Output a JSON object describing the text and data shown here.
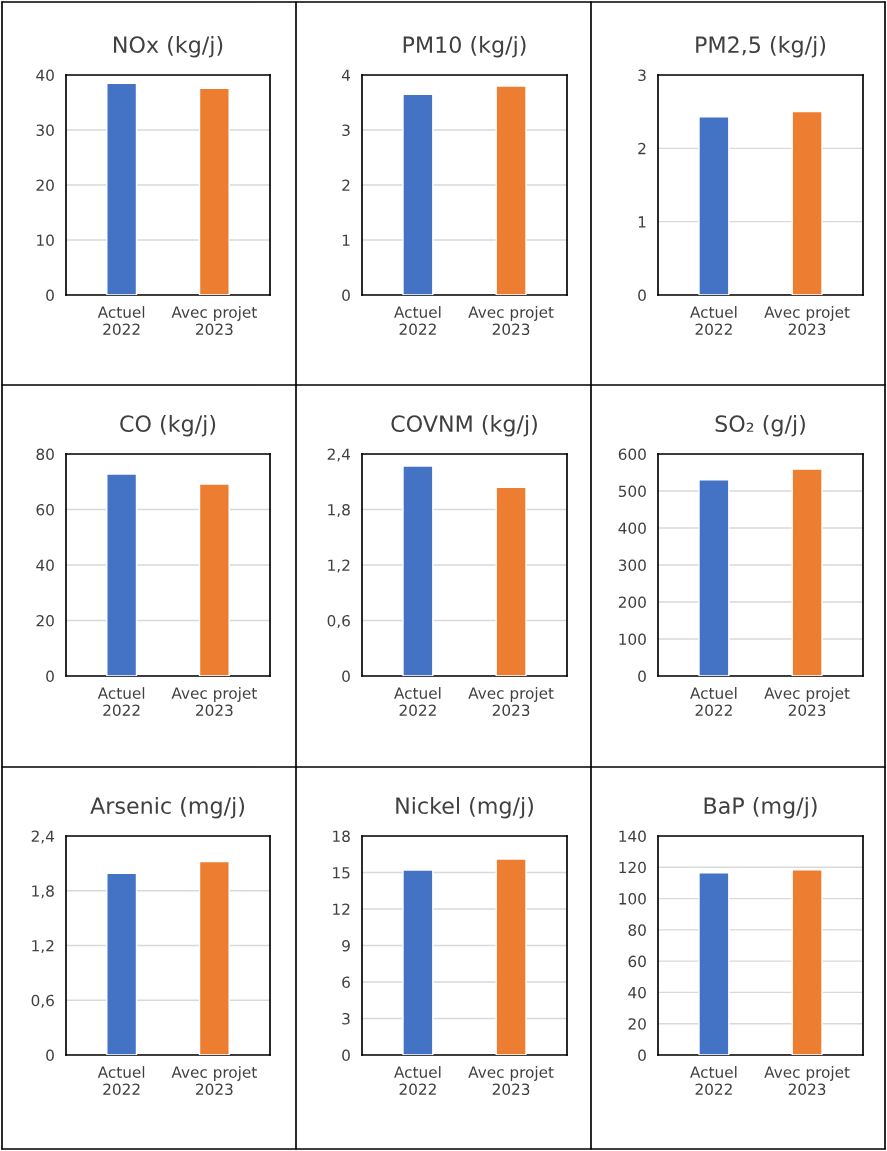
{
  "chart_data": [
    {
      "type": "bar",
      "title": "NOx (kg/j)",
      "categories": [
        "Actuel\n2022",
        "Avec projet\n2023"
      ],
      "values": [
        38.5,
        37.6
      ],
      "colors": [
        "#4472c4",
        "#ed7d31"
      ],
      "ylim": [
        0,
        40
      ],
      "yticks": [
        0,
        10,
        20,
        30,
        40
      ],
      "grid": "y"
    },
    {
      "type": "bar",
      "title": "PM10 (kg/j)",
      "categories": [
        "Actuel\n2022",
        "Avec projet\n2023"
      ],
      "values": [
        3.65,
        3.8
      ],
      "colors": [
        "#4472c4",
        "#ed7d31"
      ],
      "ylim": [
        0,
        4
      ],
      "yticks": [
        0,
        1,
        2,
        3,
        4
      ],
      "grid": "y"
    },
    {
      "type": "bar",
      "title": "PM2,5 (kg/j)",
      "categories": [
        "Actuel\n2022",
        "Avec projet\n2023"
      ],
      "values": [
        2.43,
        2.5
      ],
      "colors": [
        "#4472c4",
        "#ed7d31"
      ],
      "ylim": [
        0,
        3
      ],
      "yticks": [
        0,
        1,
        2,
        3
      ],
      "grid": "y"
    },
    {
      "type": "bar",
      "title": "CO (kg/j)",
      "categories": [
        "Actuel\n2022",
        "Avec projet\n2023"
      ],
      "values": [
        72.8,
        69.2
      ],
      "colors": [
        "#4472c4",
        "#ed7d31"
      ],
      "ylim": [
        0,
        80
      ],
      "yticks": [
        0,
        20,
        40,
        60,
        80
      ],
      "grid": "y"
    },
    {
      "type": "bar",
      "title": "COVNM (kg/j)",
      "categories": [
        "Actuel\n2022",
        "Avec projet\n2023"
      ],
      "values": [
        2.27,
        2.04
      ],
      "colors": [
        "#4472c4",
        "#ed7d31"
      ],
      "ylim": [
        0,
        2.4
      ],
      "yticks": [
        0,
        {
          "value": 0.6,
          "label": "0,6"
        },
        {
          "value": 1.2,
          "label": "1,2"
        },
        {
          "value": 1.8,
          "label": "1,8"
        },
        {
          "value": 2.4,
          "label": "2,4"
        }
      ],
      "grid": "y"
    },
    {
      "type": "bar",
      "title": "SO₂ (g/j)",
      "categories": [
        "Actuel\n2022",
        "Avec projet\n2023"
      ],
      "values": [
        530,
        559
      ],
      "colors": [
        "#4472c4",
        "#ed7d31"
      ],
      "ylim": [
        0,
        600
      ],
      "yticks": [
        0,
        100,
        200,
        300,
        400,
        500,
        600
      ],
      "grid": "y"
    },
    {
      "type": "bar",
      "title": "Arsenic (mg/j)",
      "categories": [
        "Actuel\n2022",
        "Avec projet\n2023"
      ],
      "values": [
        1.99,
        2.12
      ],
      "colors": [
        "#4472c4",
        "#ed7d31"
      ],
      "ylim": [
        0,
        2.4
      ],
      "yticks": [
        0,
        {
          "value": 0.6,
          "label": "0,6"
        },
        {
          "value": 1.2,
          "label": "1,2"
        },
        {
          "value": 1.8,
          "label": "1,8"
        },
        {
          "value": 2.4,
          "label": "2,4"
        }
      ],
      "grid": "y"
    },
    {
      "type": "bar",
      "title": "Nickel (mg/j)",
      "categories": [
        "Actuel\n2022",
        "Avec projet\n2023"
      ],
      "values": [
        15.2,
        16.1
      ],
      "colors": [
        "#4472c4",
        "#ed7d31"
      ],
      "ylim": [
        0,
        18
      ],
      "yticks": [
        0,
        3,
        6,
        9,
        12,
        15,
        18
      ],
      "grid": "y"
    },
    {
      "type": "bar",
      "title": "BaP (mg/j)",
      "categories": [
        "Actuel\n2022",
        "Avec projet\n2023"
      ],
      "values": [
        116.5,
        118.4
      ],
      "colors": [
        "#4472c4",
        "#ed7d31"
      ],
      "ylim": [
        0,
        140
      ],
      "yticks": [
        0,
        20,
        40,
        60,
        80,
        100,
        120,
        140
      ],
      "grid": "y"
    }
  ]
}
